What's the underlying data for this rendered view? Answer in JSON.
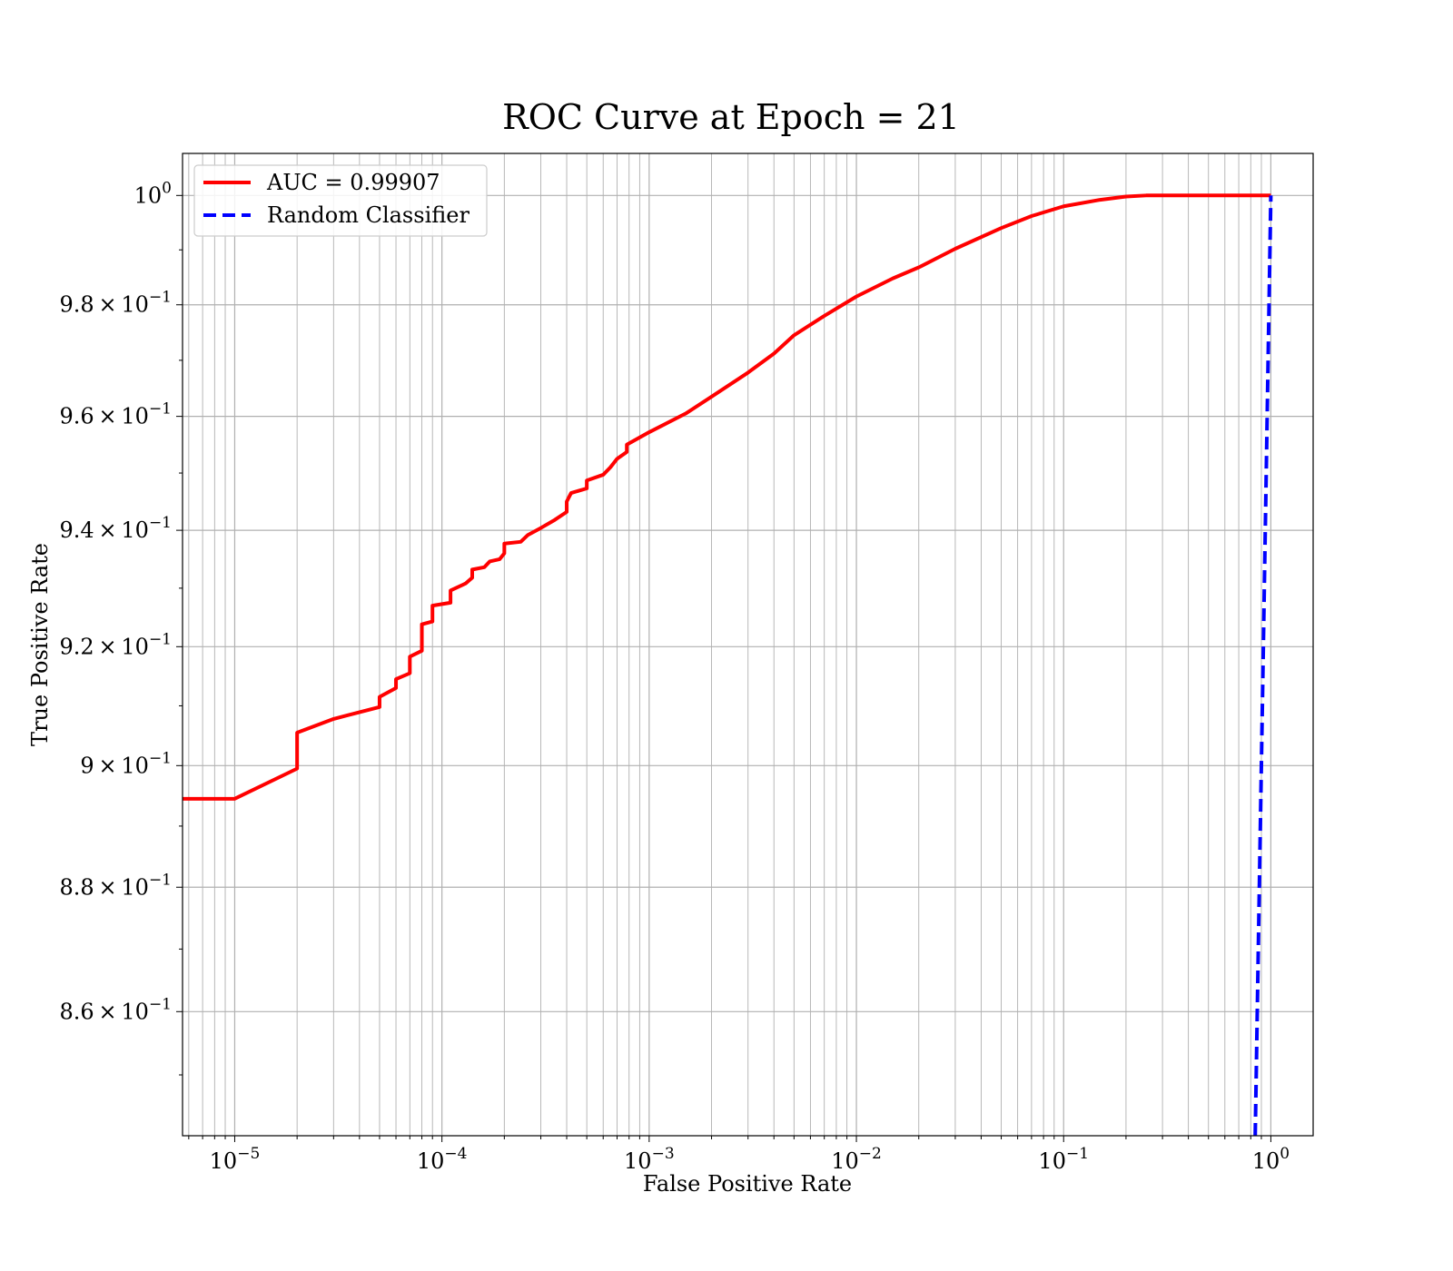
{
  "chart_data": {
    "type": "line",
    "title": "ROC Curve at Epoch = 21",
    "xlabel": "False Positive Rate",
    "ylabel": "True Positive Rate",
    "xscale": "log",
    "yscale": "log",
    "xlim": [
      5.6e-06,
      1.6
    ],
    "ylim": [
      0.8405,
      1.0078
    ],
    "grid": true,
    "grid_minor": true,
    "legend_position": "upper left",
    "x_tick_labels": [
      {
        "value": 1e-05,
        "mantissa": "",
        "base": "10",
        "exp": "−5"
      },
      {
        "value": 0.0001,
        "mantissa": "",
        "base": "10",
        "exp": "−4"
      },
      {
        "value": 0.001,
        "mantissa": "",
        "base": "10",
        "exp": "−3"
      },
      {
        "value": 0.01,
        "mantissa": "",
        "base": "10",
        "exp": "−2"
      },
      {
        "value": 0.1,
        "mantissa": "",
        "base": "10",
        "exp": "−1"
      },
      {
        "value": 1,
        "mantissa": "",
        "base": "10",
        "exp": "0"
      }
    ],
    "y_tick_labels": [
      {
        "value": 1.0,
        "mantissa": "",
        "base": "10",
        "exp": "0"
      },
      {
        "value": 0.98,
        "mantissa": "9.8",
        "base": "10",
        "exp": "−1"
      },
      {
        "value": 0.96,
        "mantissa": "9.6",
        "base": "10",
        "exp": "−1"
      },
      {
        "value": 0.94,
        "mantissa": "9.4",
        "base": "10",
        "exp": "−1"
      },
      {
        "value": 0.92,
        "mantissa": "9.2",
        "base": "10",
        "exp": "−1"
      },
      {
        "value": 0.9,
        "mantissa": "9",
        "base": "10",
        "exp": "−1"
      },
      {
        "value": 0.88,
        "mantissa": "8.8",
        "base": "10",
        "exp": "−1"
      },
      {
        "value": 0.86,
        "mantissa": "8.6",
        "base": "10",
        "exp": "−1"
      }
    ],
    "series": [
      {
        "name": "AUC = 0.99907",
        "color": "#ff0000",
        "style": "solid",
        "points": [
          [
            5.6e-06,
            0.8945
          ],
          [
            1e-05,
            0.8945
          ],
          [
            2e-05,
            0.8995
          ],
          [
            2e-05,
            0.9055
          ],
          [
            3e-05,
            0.9078
          ],
          [
            5e-05,
            0.9098
          ],
          [
            5e-05,
            0.9115
          ],
          [
            6e-05,
            0.913
          ],
          [
            6e-05,
            0.9145
          ],
          [
            7e-05,
            0.9155
          ],
          [
            7e-05,
            0.9183
          ],
          [
            8e-05,
            0.9193
          ],
          [
            8e-05,
            0.9238
          ],
          [
            9e-05,
            0.9243
          ],
          [
            9e-05,
            0.927
          ],
          [
            0.00011,
            0.9275
          ],
          [
            0.00011,
            0.9296
          ],
          [
            0.00013,
            0.9308
          ],
          [
            0.00014,
            0.9318
          ],
          [
            0.00014,
            0.9332
          ],
          [
            0.00016,
            0.9336
          ],
          [
            0.00017,
            0.9346
          ],
          [
            0.00019,
            0.935
          ],
          [
            0.0002,
            0.936
          ],
          [
            0.0002,
            0.9377
          ],
          [
            0.00024,
            0.938
          ],
          [
            0.00026,
            0.9392
          ],
          [
            0.0003,
            0.9404
          ],
          [
            0.00035,
            0.9418
          ],
          [
            0.0004,
            0.9432
          ],
          [
            0.0004,
            0.945
          ],
          [
            0.00042,
            0.9465
          ],
          [
            0.0005,
            0.9473
          ],
          [
            0.0005,
            0.9487
          ],
          [
            0.0006,
            0.9497
          ],
          [
            0.00065,
            0.951
          ],
          [
            0.0007,
            0.9525
          ],
          [
            0.00078,
            0.9537
          ],
          [
            0.00078,
            0.955
          ],
          [
            0.001,
            0.9572
          ],
          [
            0.0015,
            0.9605
          ],
          [
            0.002,
            0.9635
          ],
          [
            0.003,
            0.9678
          ],
          [
            0.004,
            0.9712
          ],
          [
            0.005,
            0.9745
          ],
          [
            0.007,
            0.978
          ],
          [
            0.01,
            0.9815
          ],
          [
            0.015,
            0.9848
          ],
          [
            0.02,
            0.9868
          ],
          [
            0.03,
            0.9902
          ],
          [
            0.05,
            0.994
          ],
          [
            0.07,
            0.9962
          ],
          [
            0.1,
            0.998
          ],
          [
            0.15,
            0.9992
          ],
          [
            0.2,
            0.9998
          ],
          [
            0.25,
            1.0
          ],
          [
            1.0,
            1.0
          ]
        ]
      },
      {
        "name": "Random Classifier",
        "color": "#0000ff",
        "style": "dashed",
        "points": [
          [
            0.8405,
            0.8405
          ],
          [
            1.0,
            1.0
          ]
        ]
      }
    ]
  }
}
